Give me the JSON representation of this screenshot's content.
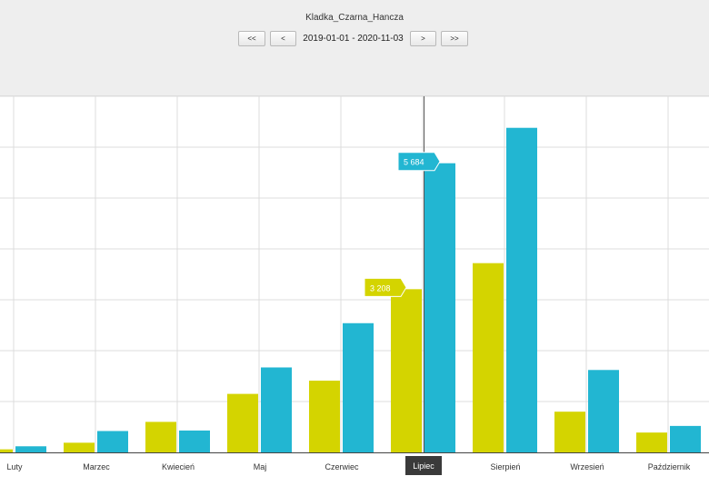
{
  "header": {
    "title": "Kladka_Czarna_Hancza",
    "date_range": "2019-01-01 - 2020-11-03",
    "buttons": {
      "first": "<<",
      "prev": "<",
      "next": ">",
      "last": ">>"
    }
  },
  "colors": {
    "series_a": "#d4d400",
    "series_b": "#22b6d2",
    "highlight_label": "#3a3a3a"
  },
  "chart_data": {
    "type": "bar",
    "title": "",
    "xlabel": "",
    "ylabel": "",
    "categories": [
      "Luty",
      "Marzec",
      "Kwiecień",
      "Maj",
      "Czerwiec",
      "Lipiec",
      "Sierpień",
      "Wrzesień",
      "Październik"
    ],
    "series": [
      {
        "color": "#d4d400",
        "values": [
          60,
          190,
          600,
          1150,
          1410,
          3208,
          3720,
          800,
          390
        ]
      },
      {
        "color": "#22b6d2",
        "values": [
          120,
          420,
          430,
          1670,
          2540,
          5684,
          6380,
          1620,
          520
        ]
      }
    ],
    "ylim": [
      0,
      7000
    ],
    "grid": true,
    "highlighted_category": "Lipiec",
    "tooltips": [
      {
        "category": "Lipiec",
        "series": 0,
        "label": "3 208"
      },
      {
        "category": "Lipiec",
        "series": 1,
        "label": "5 684"
      }
    ]
  }
}
